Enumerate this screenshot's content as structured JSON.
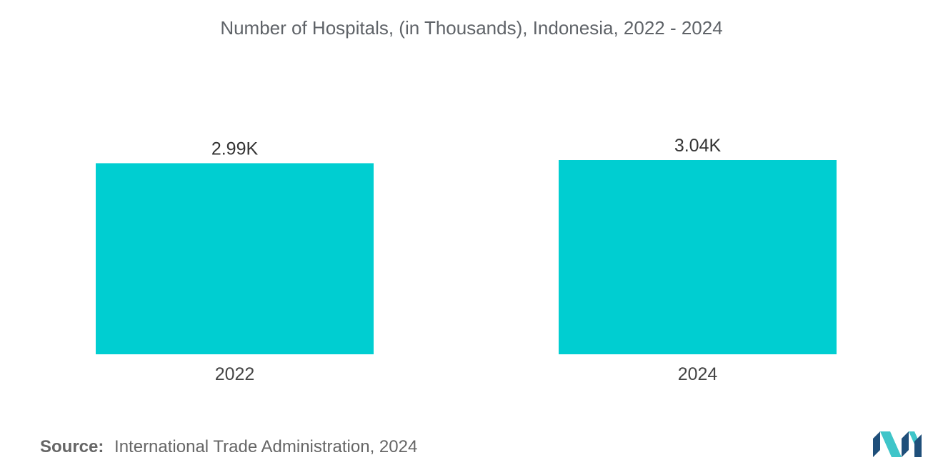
{
  "chart_data": {
    "type": "bar",
    "title": "Number of Hospitals, (in Thousands), Indonesia, 2022 - 2024",
    "categories": [
      "2022",
      "2024"
    ],
    "values": [
      2.99,
      3.04
    ],
    "data_labels": [
      "2.99K",
      "3.04K"
    ],
    "xlabel": "",
    "ylabel": "",
    "ylim": [
      0,
      3.04
    ],
    "grid": false,
    "legend": "none",
    "bar_color": "#00ced1"
  },
  "source": {
    "label": "Source:",
    "text": "International Trade Administration, 2024"
  },
  "logo": {
    "icon": "mordor-intelligence-logo-icon",
    "colors": [
      "#1f4f7a",
      "#3fc5c9"
    ]
  }
}
